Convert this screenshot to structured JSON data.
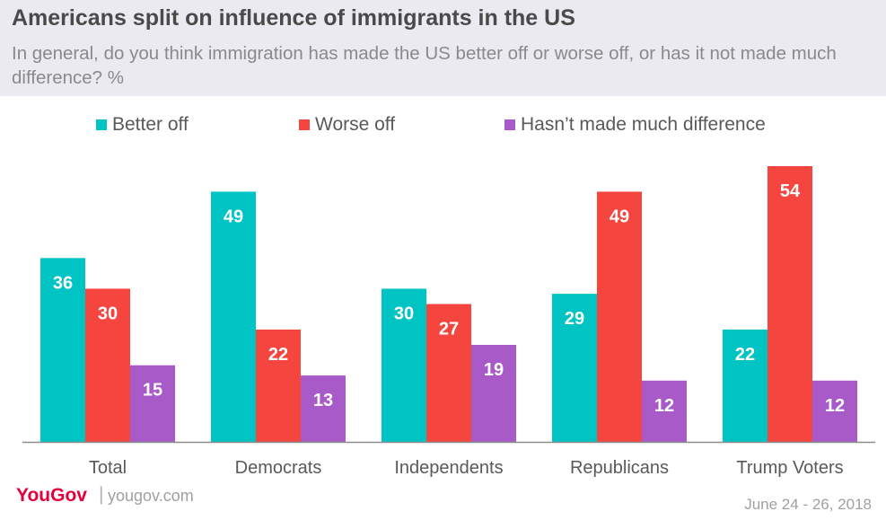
{
  "header": {
    "title": "Americans split on influence of immigrants in the US",
    "subtitle": "In general, do you think immigration has made the US better off or worse off, or has it not made much difference? %"
  },
  "chart_data": {
    "type": "bar",
    "categories": [
      "Total",
      "Democrats",
      "Independents",
      "Republicans",
      "Trump Voters"
    ],
    "series": [
      {
        "name": "Better off",
        "color": "#00c4c4",
        "values": [
          36,
          49,
          30,
          29,
          22
        ]
      },
      {
        "name": "Worse off",
        "color": "#f4463e",
        "values": [
          30,
          22,
          27,
          49,
          54
        ]
      },
      {
        "name": "Hasn’t made much difference",
        "color": "#a85bc8",
        "values": [
          15,
          13,
          19,
          12,
          12
        ]
      }
    ],
    "ylim": [
      0,
      54
    ],
    "grid": false,
    "legend_position": "top"
  },
  "footer": {
    "brand": "YouGov",
    "separator": "|",
    "url": "yougov.com",
    "date": "June 24 - 26, 2018"
  }
}
